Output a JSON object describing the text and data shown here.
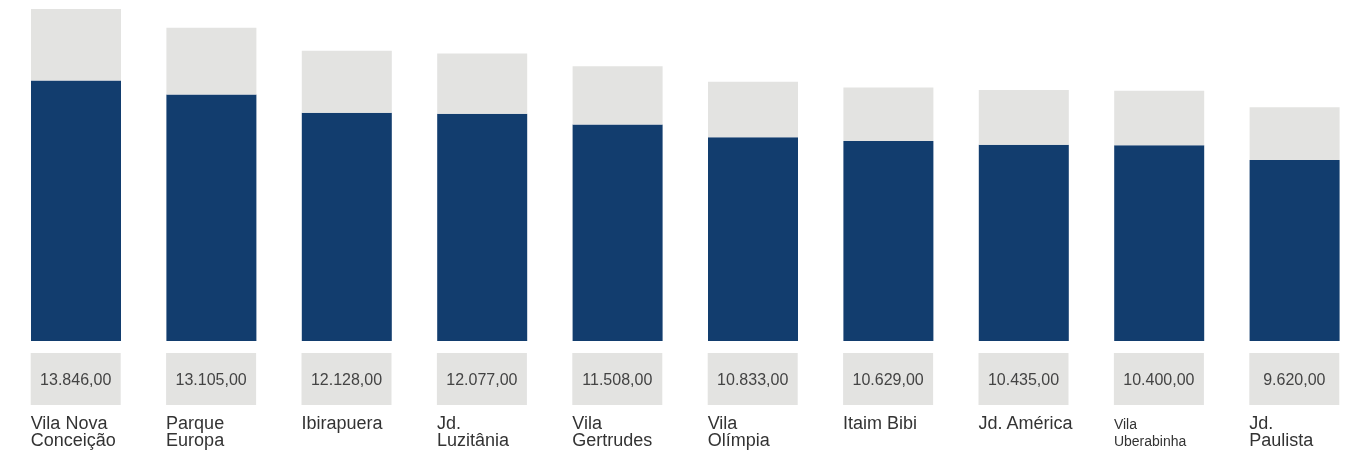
{
  "chart_data": {
    "type": "bar",
    "stacked": true,
    "categories": [
      "Vila Nova Conceição",
      "Parque Europa",
      "Ibirapuera",
      "Jd. Luzitânia",
      "Vila Gertrudes",
      "Vila Olímpia",
      "Itaim Bibi",
      "Jd. América",
      "Vila Uberabinha",
      "Jd. Paulista"
    ],
    "series": [
      {
        "color": "#123d6e",
        "values": [
          13846,
          13105,
          12128,
          12077,
          11508,
          10833,
          10629,
          10435,
          10400,
          9620
        ],
        "value_labels": [
          "13.846,00",
          "13.105,00",
          "12.128,00",
          "12.077,00",
          "11.508,00",
          "10.833,00",
          "10.629,00",
          "10.435,00",
          "10.400,00",
          "9.620,00"
        ]
      },
      {
        "color": "#e3e3e1",
        "values": [
          3800,
          3550,
          3300,
          3200,
          3100,
          2950,
          2850,
          2900,
          2900,
          2800
        ]
      }
    ],
    "ylim": [
      0,
      17700
    ],
    "tick_labels": "x"
  }
}
